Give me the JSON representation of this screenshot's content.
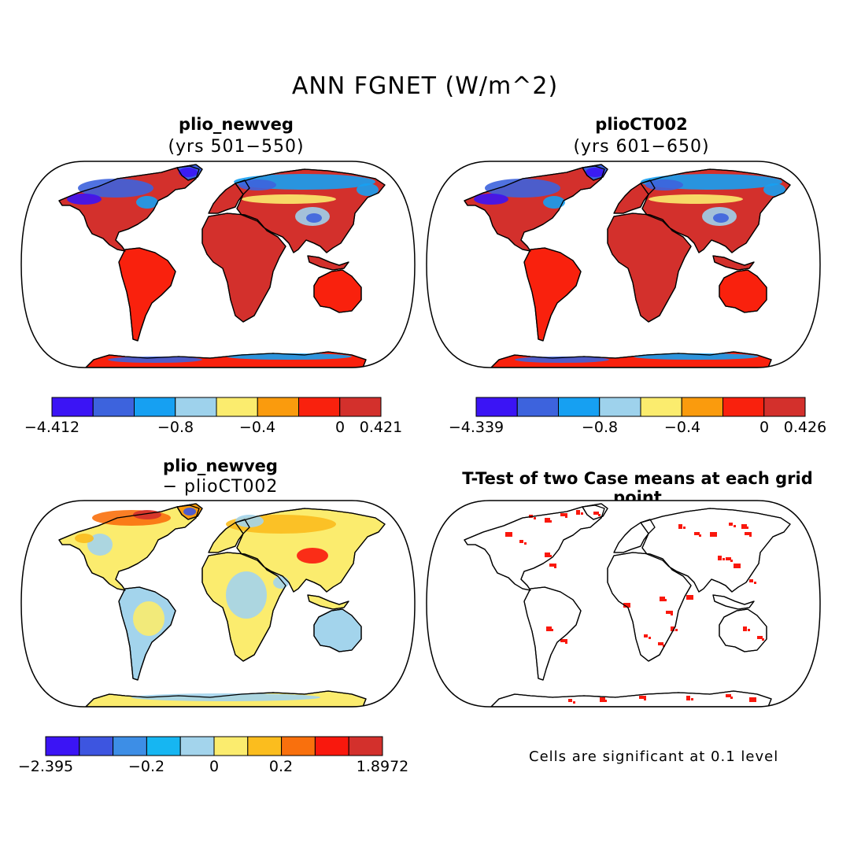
{
  "title": "ANN FGNET (W/m^2)",
  "panels": [
    {
      "title": "plio_newveg",
      "subtitle": "(yrs 501−550)"
    },
    {
      "title": "plioCT002",
      "subtitle": "(yrs 601−650)"
    },
    {
      "title": "plio_newveg",
      "subtitle": "− plioCT002"
    },
    {
      "title": "T-Test of two Case means at each grid point",
      "subtitle": ""
    }
  ],
  "colorbars": [
    {
      "colors": [
        "#3b14f5",
        "#3d63dd",
        "#16a0f2",
        "#9ed2ec",
        "#fbec6e",
        "#fa9b0d",
        "#f9210d",
        "#d3302c"
      ],
      "labels": [
        "−4.412",
        "−0.8",
        "−0.4",
        "0",
        "0.421"
      ]
    },
    {
      "colors": [
        "#3b14f5",
        "#3d63dd",
        "#16a0f2",
        "#9ed2ec",
        "#fbec6e",
        "#fa9b0d",
        "#f9210d",
        "#d3302c"
      ],
      "labels": [
        "−4.339",
        "−0.8",
        "−0.4",
        "0",
        "0.426"
      ]
    },
    {
      "colors": [
        "#3b14f5",
        "#3d55e0",
        "#3d8ee6",
        "#16b6f2",
        "#a3d4ec",
        "#fbec6e",
        "#fbbd1e",
        "#f9700d",
        "#f9180d",
        "#d3302c"
      ],
      "labels": [
        "−2.395",
        "−0.2",
        "0",
        "0.2",
        "1.8972"
      ]
    }
  ],
  "note": "Cells are significant at 0.1 level"
}
